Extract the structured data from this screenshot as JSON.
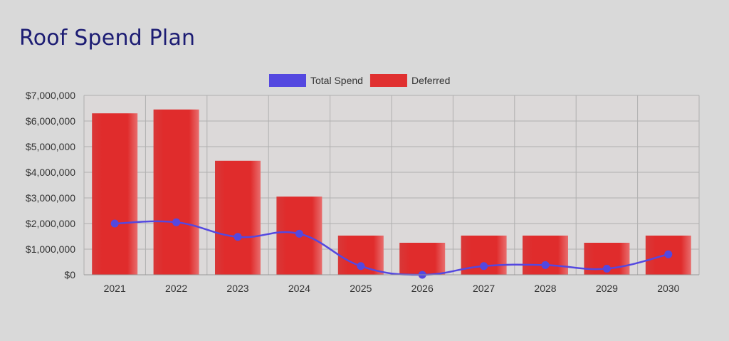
{
  "title": "Roof Spend Plan",
  "chart_data": {
    "type": "bar",
    "categories": [
      "2021",
      "2022",
      "2023",
      "2024",
      "2025",
      "2026",
      "2027",
      "2028",
      "2029",
      "2030"
    ],
    "series": [
      {
        "name": "Total Spend",
        "type": "line",
        "color": "#5448e0",
        "values": [
          2000000,
          2050000,
          1480000,
          1600000,
          340000,
          0,
          340000,
          380000,
          240000,
          800000
        ]
      },
      {
        "name": "Deferred",
        "type": "bar",
        "color": "#e03030",
        "values": [
          6300000,
          6450000,
          4450000,
          3050000,
          1530000,
          1250000,
          1530000,
          1530000,
          1250000,
          1530000
        ]
      }
    ],
    "yticks": [
      "$0",
      "$1,000,000",
      "$2,000,000",
      "$3,000,000",
      "$4,000,000",
      "$5,000,000",
      "$6,000,000",
      "$7,000,000"
    ],
    "ylim": [
      0,
      7000000
    ],
    "legend_position": "top-center",
    "grid": true,
    "xlabel": "",
    "ylabel": ""
  }
}
